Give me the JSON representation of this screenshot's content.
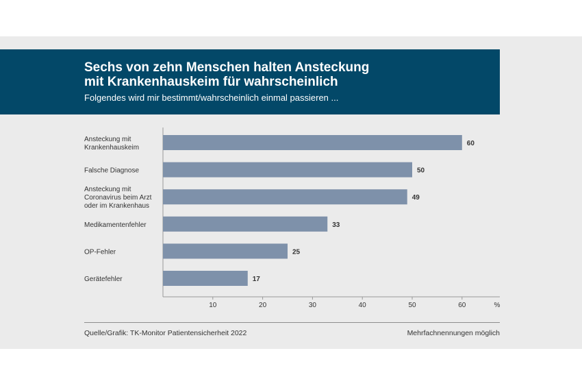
{
  "header": {
    "title_line1": "Sechs von zehn Menschen halten Ansteckung",
    "title_line2": "mit Krankenhauskeim für wahrscheinlich",
    "subtitle": "Folgendes wird mir bestimmt/wahrscheinlich einmal passieren ..."
  },
  "footer": {
    "source": "Quelle/Grafik: TK-Monitor Patientensicherheit 2022",
    "note": "Mehrfachnennungen möglich"
  },
  "colors": {
    "header_bg": "#034868",
    "bar": "#7e91aa",
    "panel_bg": "#ebebeb"
  },
  "chart_data": {
    "type": "bar",
    "orientation": "horizontal",
    "categories": [
      [
        "Ansteckung mit",
        "Krankenhauskeim"
      ],
      [
        "Falsche Diagnose"
      ],
      [
        "Ansteckung mit",
        "Coronavirus beim Arzt",
        "oder im Krankenhaus"
      ],
      [
        "Medikamentenfehler"
      ],
      [
        "OP-Fehler"
      ],
      [
        "Gerätefehler"
      ]
    ],
    "values": [
      60,
      50,
      49,
      33,
      25,
      17
    ],
    "xlim": [
      0,
      67
    ],
    "xticks": [
      10,
      20,
      30,
      40,
      50,
      60
    ],
    "xunit": "%",
    "grid": false
  }
}
